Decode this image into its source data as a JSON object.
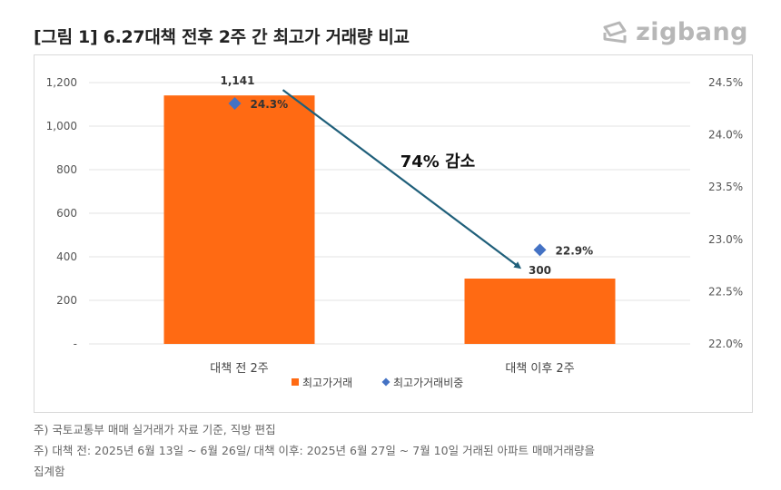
{
  "header": {
    "title": "[그림 1] 6.27대책 전후 2주 간 최고가 거래량 비교",
    "logo_text": "zigbang",
    "logo_color": "#b7b7b7"
  },
  "chart_data": {
    "type": "bar",
    "categories": [
      "대책 전 2주",
      "대책 이후 2주"
    ],
    "series": [
      {
        "name": "최고가거래",
        "kind": "bar",
        "axis": "left",
        "values": [
          1141,
          300
        ],
        "labels": [
          "1,141",
          "300"
        ],
        "color": "#ff6a13"
      },
      {
        "name": "최고가거래비중",
        "kind": "marker",
        "axis": "right",
        "values": [
          24.3,
          22.9
        ],
        "labels": [
          "24.3%",
          "22.9%"
        ],
        "color": "#4472c4"
      }
    ],
    "y_left": {
      "min": 0,
      "max": 1200,
      "ticks": [
        "-",
        "200",
        "400",
        "600",
        "800",
        "1,000",
        "1,200"
      ]
    },
    "y_right": {
      "min": 22.0,
      "max": 24.5,
      "ticks": [
        "22.0%",
        "22.5%",
        "23.0%",
        "23.5%",
        "24.0%",
        "24.5%"
      ]
    },
    "annotation": "74% 감소",
    "arrow_color": "#1f5f7a",
    "grid": true,
    "legend_position": "bottom"
  },
  "footnotes": [
    "주) 국토교통부 매매 실거래가 자료 기준, 직방 편집",
    "주) 대책 전: 2025년 6월 13일 ~ 6월 26일/ 대책 이후: 2025년 6월 27일 ~ 7월 10일 거래된 아파트 매매거래량을",
    "집계함"
  ]
}
